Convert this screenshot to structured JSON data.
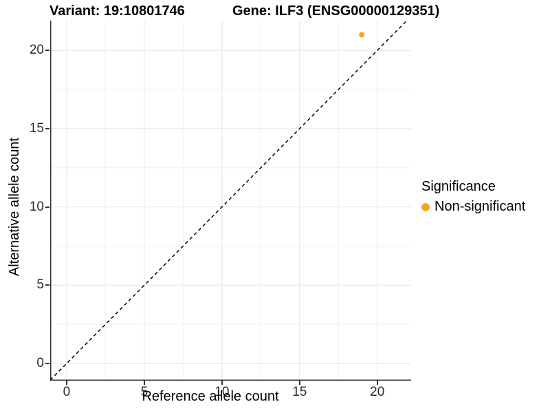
{
  "titles": {
    "variant": "Variant: 19:10801746",
    "gene": "Gene: ILF3 (ENSG00000129351)"
  },
  "chart_data": {
    "type": "scatter",
    "title": "Variant: 19:10801746   Gene: ILF3 (ENSG00000129351)",
    "xlabel": "Reference allele count",
    "ylabel": "Alternative allele count",
    "xlim": [
      -1.06,
      22.18
    ],
    "ylim": [
      -1.1,
      21.9
    ],
    "xticks": [
      0,
      5,
      10,
      15,
      20
    ],
    "yticks": [
      0,
      5,
      10,
      15,
      20
    ],
    "xticks_minor": [
      2.5,
      7.5,
      12.5,
      17.5
    ],
    "yticks_minor": [
      2.5,
      7.5,
      12.5,
      17.5
    ],
    "grid": true,
    "series": [
      {
        "name": "Non-significant",
        "color": "#F9A126",
        "points": [
          {
            "x": 19,
            "y": 21
          }
        ]
      }
    ],
    "identity_line": {
      "style": "dashed",
      "equation": "y = x",
      "x1": -1.06,
      "y1": -1.06,
      "x2": 21.9,
      "y2": 21.9,
      "color": "#000000"
    },
    "legend": {
      "title": "Significance",
      "position": "right",
      "entries": [
        {
          "label": "Non-significant",
          "color": "#F9A126"
        }
      ]
    },
    "colors": {
      "axis_line": "#333333",
      "tick_mark": "#333333",
      "tick_label": "#2b2b2b",
      "grid_major": "#e5e5e5",
      "grid_minor": "#f1f1f1",
      "background": "#ffffff",
      "point": "#F9A126"
    }
  }
}
